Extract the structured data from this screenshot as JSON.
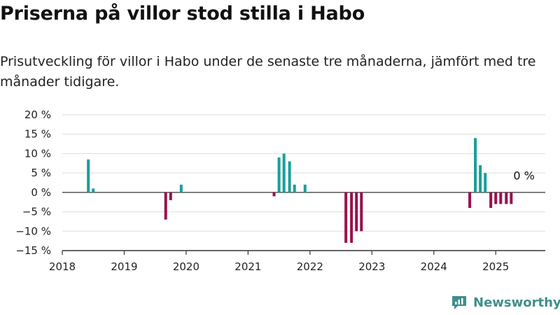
{
  "title": "Priserna på villor stod stilla i Habo",
  "subtitle": "Prisutveckling för villor i Habo under de senaste tre månaderna, jämfört med tre månader tidigare.",
  "brand": {
    "name": "Newsworthy"
  },
  "colors": {
    "positive": "#1a9e98",
    "negative": "#99114e",
    "axis": "#333333",
    "grid": "#dddddd",
    "brand": "#3f8f8b"
  },
  "chart_data": {
    "type": "bar",
    "xlabel": "",
    "ylabel": "",
    "xlim": [
      2018.0,
      2025.8
    ],
    "ylim": [
      -15,
      20
    ],
    "yticks": [
      20,
      15,
      10,
      5,
      0,
      -5,
      -10,
      -15
    ],
    "ytick_labels": [
      "20 %",
      "15 %",
      "10 %",
      "5 %",
      "0 %",
      "−5 %",
      "−10 %",
      "−15 %"
    ],
    "xticks": [
      2018,
      2019,
      2020,
      2021,
      2022,
      2023,
      2024,
      2025
    ],
    "xtick_labels": [
      "2018",
      "2019",
      "2020",
      "2021",
      "2022",
      "2023",
      "2024",
      "2025"
    ],
    "grid": true,
    "annotation": "0 %",
    "points": [
      {
        "x": 2018.42,
        "y": 8.5
      },
      {
        "x": 2018.5,
        "y": 1
      },
      {
        "x": 2019.67,
        "y": -7
      },
      {
        "x": 2019.75,
        "y": -2
      },
      {
        "x": 2019.92,
        "y": 2
      },
      {
        "x": 2021.42,
        "y": -1
      },
      {
        "x": 2021.5,
        "y": 9
      },
      {
        "x": 2021.58,
        "y": 10
      },
      {
        "x": 2021.67,
        "y": 8
      },
      {
        "x": 2021.75,
        "y": 2
      },
      {
        "x": 2021.92,
        "y": 2
      },
      {
        "x": 2022.58,
        "y": -13
      },
      {
        "x": 2022.67,
        "y": -13
      },
      {
        "x": 2022.75,
        "y": -10
      },
      {
        "x": 2022.83,
        "y": -10
      },
      {
        "x": 2024.58,
        "y": -4
      },
      {
        "x": 2024.67,
        "y": 14
      },
      {
        "x": 2024.75,
        "y": 7
      },
      {
        "x": 2024.83,
        "y": 5
      },
      {
        "x": 2024.92,
        "y": -4
      },
      {
        "x": 2025.0,
        "y": -3
      },
      {
        "x": 2025.08,
        "y": -3
      },
      {
        "x": 2025.17,
        "y": -3
      },
      {
        "x": 2025.25,
        "y": -3
      }
    ]
  }
}
